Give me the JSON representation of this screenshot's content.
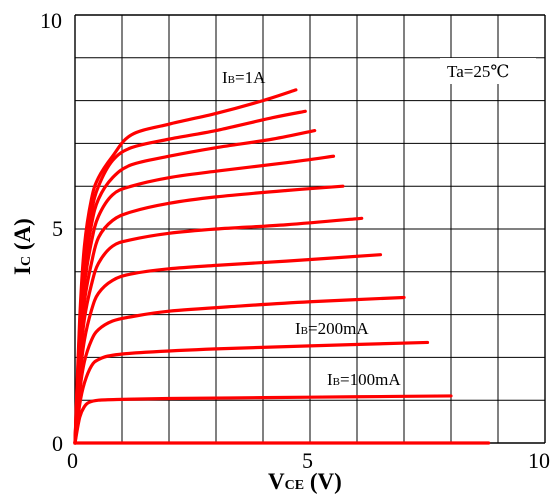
{
  "chart_data": {
    "type": "line",
    "title": "",
    "xlabel": {
      "main": "V",
      "sub": "CE",
      "suffix": " (V)"
    },
    "ylabel": {
      "main": "I",
      "sub": "C",
      "suffix": " (A)"
    },
    "xlim": [
      0,
      10
    ],
    "ylim": [
      0,
      10
    ],
    "xticks": [
      "0",
      "5",
      "10"
    ],
    "yticks": [
      "0",
      "5",
      "10"
    ],
    "grid": true,
    "annotation": "Ta=25℃",
    "line_color": "#ff0000",
    "series": [
      {
        "x": [
          0,
          8.8
        ],
        "y": [
          0,
          0
        ]
      },
      {
        "name": "IB=100mA",
        "x": [
          0,
          0.1,
          0.2,
          0.3,
          0.5,
          1,
          2,
          4,
          6,
          8
        ],
        "y": [
          0,
          0.6,
          0.85,
          0.95,
          1.0,
          1.02,
          1.04,
          1.06,
          1.08,
          1.1
        ]
      },
      {
        "x": [
          0,
          0.1,
          0.2,
          0.35,
          0.5,
          0.8,
          1.5,
          3,
          5,
          7.5
        ],
        "y": [
          0,
          0.9,
          1.4,
          1.8,
          1.95,
          2.05,
          2.12,
          2.2,
          2.27,
          2.35
        ]
      },
      {
        "x": [
          0,
          0.1,
          0.2,
          0.35,
          0.5,
          0.8,
          1.2,
          2,
          3.5,
          5,
          7
        ],
        "y": [
          0,
          1.2,
          1.9,
          2.4,
          2.65,
          2.85,
          2.95,
          3.08,
          3.2,
          3.3,
          3.4
        ]
      },
      {
        "x": [
          0,
          0.1,
          0.2,
          0.35,
          0.5,
          0.8,
          1.2,
          2,
          3,
          4.5,
          6.5
        ],
        "y": [
          0,
          1.5,
          2.4,
          3.1,
          3.5,
          3.8,
          3.95,
          4.07,
          4.15,
          4.25,
          4.4
        ]
      },
      {
        "x": [
          0,
          0.1,
          0.2,
          0.35,
          0.5,
          0.8,
          1.2,
          2,
          3,
          4.5,
          6.1
        ],
        "y": [
          0,
          1.8,
          2.9,
          3.7,
          4.2,
          4.6,
          4.75,
          4.9,
          5.0,
          5.1,
          5.25
        ]
      },
      {
        "x": [
          0,
          0.1,
          0.2,
          0.35,
          0.5,
          0.8,
          1.2,
          2,
          3,
          4.5,
          5.7
        ],
        "y": [
          0,
          2.0,
          3.3,
          4.2,
          4.8,
          5.2,
          5.4,
          5.6,
          5.75,
          5.9,
          6.0
        ]
      },
      {
        "x": [
          0,
          0.1,
          0.2,
          0.35,
          0.5,
          0.8,
          1.2,
          2,
          3,
          4.5,
          5.5
        ],
        "y": [
          0,
          2.3,
          3.7,
          4.7,
          5.3,
          5.8,
          6.0,
          6.2,
          6.35,
          6.55,
          6.7
        ]
      },
      {
        "x": [
          0,
          0.1,
          0.2,
          0.35,
          0.5,
          0.8,
          1.2,
          2,
          3,
          4.2,
          5.1
        ],
        "y": [
          0,
          2.5,
          4.0,
          5.1,
          5.7,
          6.2,
          6.5,
          6.7,
          6.9,
          7.1,
          7.3
        ]
      },
      {
        "x": [
          0,
          0.1,
          0.2,
          0.35,
          0.5,
          0.8,
          1.2,
          2,
          3,
          4.2,
          4.9
        ],
        "y": [
          0,
          2.7,
          4.3,
          5.4,
          6.0,
          6.6,
          6.9,
          7.1,
          7.3,
          7.6,
          7.75
        ]
      },
      {
        "name": "IB=1A",
        "x": [
          0,
          0.1,
          0.2,
          0.35,
          0.5,
          0.8,
          1.2,
          2,
          3,
          4,
          4.7
        ],
        "y": [
          0,
          2.9,
          4.6,
          5.7,
          6.2,
          6.7,
          7.2,
          7.45,
          7.7,
          8.0,
          8.25
        ]
      }
    ],
    "series_labels": [
      {
        "main": "I",
        "sub": "B",
        "rest": "=1A"
      },
      {
        "main": "I",
        "sub": "B",
        "rest": "=200mA"
      },
      {
        "main": "I",
        "sub": "B",
        "rest": "=100mA"
      }
    ]
  }
}
